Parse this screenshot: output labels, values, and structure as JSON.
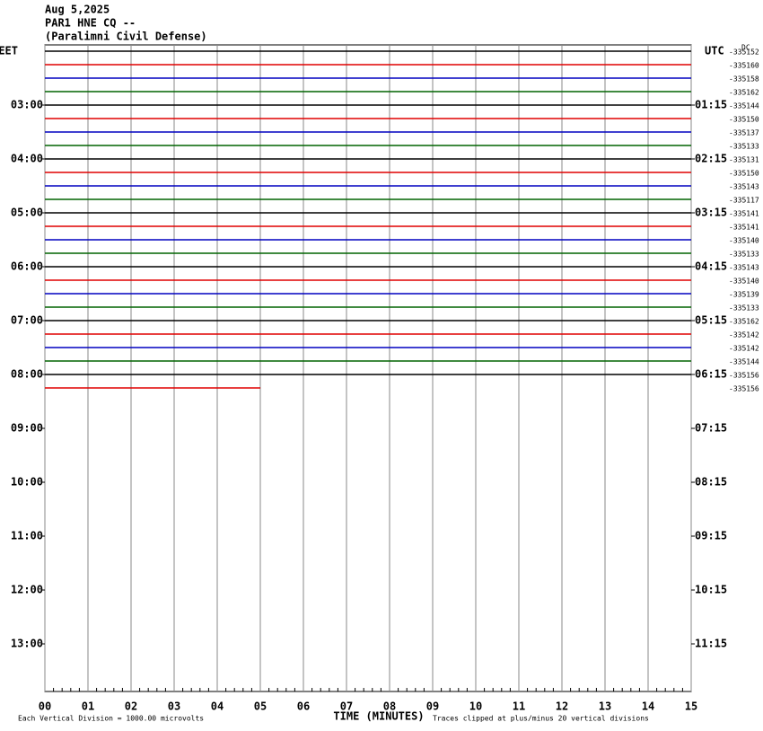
{
  "header": {
    "date": "Aug 5,2025",
    "station": "PAR1 HNE CQ --",
    "site": "(Paralimni Civil Defense)"
  },
  "chart_data": {
    "type": "helicorder",
    "left_timezone": "EET",
    "right_timezone": "UTC",
    "dc_label": "DC",
    "xlabel": "TIME (MINUTES)",
    "footer_left": "Each Vertical Division = 1000.00 microvolts",
    "footer_right": "Traces clipped at plus/minus 20 vertical divisions",
    "xlim": [
      0,
      15
    ],
    "xticks": [
      {
        "value": 0,
        "label": "00"
      },
      {
        "value": 1,
        "label": "01"
      },
      {
        "value": 2,
        "label": "02"
      },
      {
        "value": 3,
        "label": "03"
      },
      {
        "value": 4,
        "label": "04"
      },
      {
        "value": 5,
        "label": "05"
      },
      {
        "value": 6,
        "label": "06"
      },
      {
        "value": 7,
        "label": "07"
      },
      {
        "value": 8,
        "label": "08"
      },
      {
        "value": 9,
        "label": "09"
      },
      {
        "value": 10,
        "label": "10"
      },
      {
        "value": 11,
        "label": "11"
      },
      {
        "value": 12,
        "label": "12"
      },
      {
        "value": 13,
        "label": "13"
      },
      {
        "value": 14,
        "label": "14"
      },
      {
        "value": 15,
        "label": "15"
      }
    ],
    "ylim": [
      0,
      12
    ],
    "yticks": [
      {
        "value": 1,
        "label": "03:00"
      },
      {
        "value": 2,
        "label": "04:00"
      },
      {
        "value": 3,
        "label": "05:00"
      },
      {
        "value": 4,
        "label": "06:00"
      },
      {
        "value": 5,
        "label": "07:00"
      },
      {
        "value": 6,
        "label": "08:00"
      },
      {
        "value": 7,
        "label": "09:00"
      },
      {
        "value": 8,
        "label": "10:00"
      },
      {
        "value": 9,
        "label": "11:00"
      },
      {
        "value": 10,
        "label": "12:00"
      },
      {
        "value": 11,
        "label": "13:00"
      }
    ],
    "y2ticks": [
      {
        "value": 1,
        "label": "01:15"
      },
      {
        "value": 2,
        "label": "02:15"
      },
      {
        "value": 3,
        "label": "03:15"
      },
      {
        "value": 4,
        "label": "04:15"
      },
      {
        "value": 5,
        "label": "05:15"
      },
      {
        "value": 6,
        "label": "06:15"
      },
      {
        "value": 7,
        "label": "07:15"
      },
      {
        "value": 8,
        "label": "08:15"
      },
      {
        "value": 9,
        "label": "09:15"
      },
      {
        "value": 10,
        "label": "10:15"
      },
      {
        "value": 11,
        "label": "11:15"
      }
    ],
    "colors": [
      "#000000",
      "#e00000",
      "#0000c0",
      "#006400"
    ],
    "dc_offsets": [
      -335152,
      -335160,
      -335158,
      -335162,
      -335144,
      -335150,
      -335137,
      -335133,
      -335131,
      -335150,
      -335143,
      -335117,
      -335141,
      -335141,
      -335140,
      -335133,
      -335143,
      -335140,
      -335139,
      -335133,
      -335162,
      -335142,
      -335142,
      -335144,
      -335156,
      -335156
    ],
    "last_trace_end": 5
  }
}
